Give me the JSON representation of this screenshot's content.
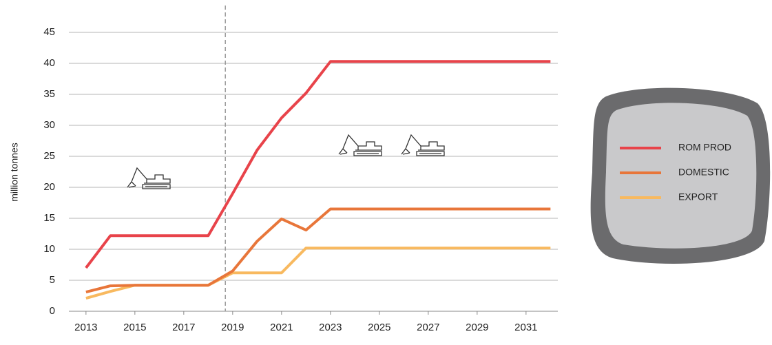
{
  "chart_data": {
    "type": "line",
    "ylabel": "million tonnes",
    "x": [
      2013,
      2014,
      2015,
      2016,
      2017,
      2018,
      2019,
      2020,
      2021,
      2022,
      2023,
      2024,
      2025,
      2026,
      2027,
      2028,
      2029,
      2030,
      2031,
      2032
    ],
    "series": [
      {
        "name": "ROM PROD",
        "color": "#e8434a",
        "values": [
          7,
          12.2,
          12.2,
          12.2,
          12.2,
          12.2,
          19,
          26,
          31.2,
          35.2,
          40.3,
          40.3,
          40.3,
          40.3,
          40.3,
          40.3,
          40.3,
          40.3,
          40.3,
          40.3
        ]
      },
      {
        "name": "DOMESTIC",
        "color": "#e8763a",
        "values": [
          3.1,
          4.1,
          4.2,
          4.2,
          4.2,
          4.2,
          6.5,
          11.3,
          14.9,
          13.1,
          16.5,
          16.5,
          16.5,
          16.5,
          16.5,
          16.5,
          16.5,
          16.5,
          16.5,
          16.5
        ]
      },
      {
        "name": "EXPORT",
        "color": "#f8b95f",
        "values": [
          2.1,
          3.2,
          4.2,
          4.2,
          4.2,
          4.2,
          6.2,
          6.2,
          6.2,
          10.2,
          10.2,
          10.2,
          10.2,
          10.2,
          10.2,
          10.2,
          10.2,
          10.2,
          10.2,
          10.2
        ]
      }
    ],
    "xlim": [
      2012.3,
      2032.3
    ],
    "xticks": [
      2013,
      2015,
      2017,
      2019,
      2021,
      2023,
      2025,
      2027,
      2029,
      2031
    ],
    "ylim": [
      0,
      45
    ],
    "yticks": [
      0,
      5,
      10,
      15,
      20,
      25,
      30,
      35,
      40,
      45
    ],
    "grid": true,
    "vline": 2018.7
  }
}
